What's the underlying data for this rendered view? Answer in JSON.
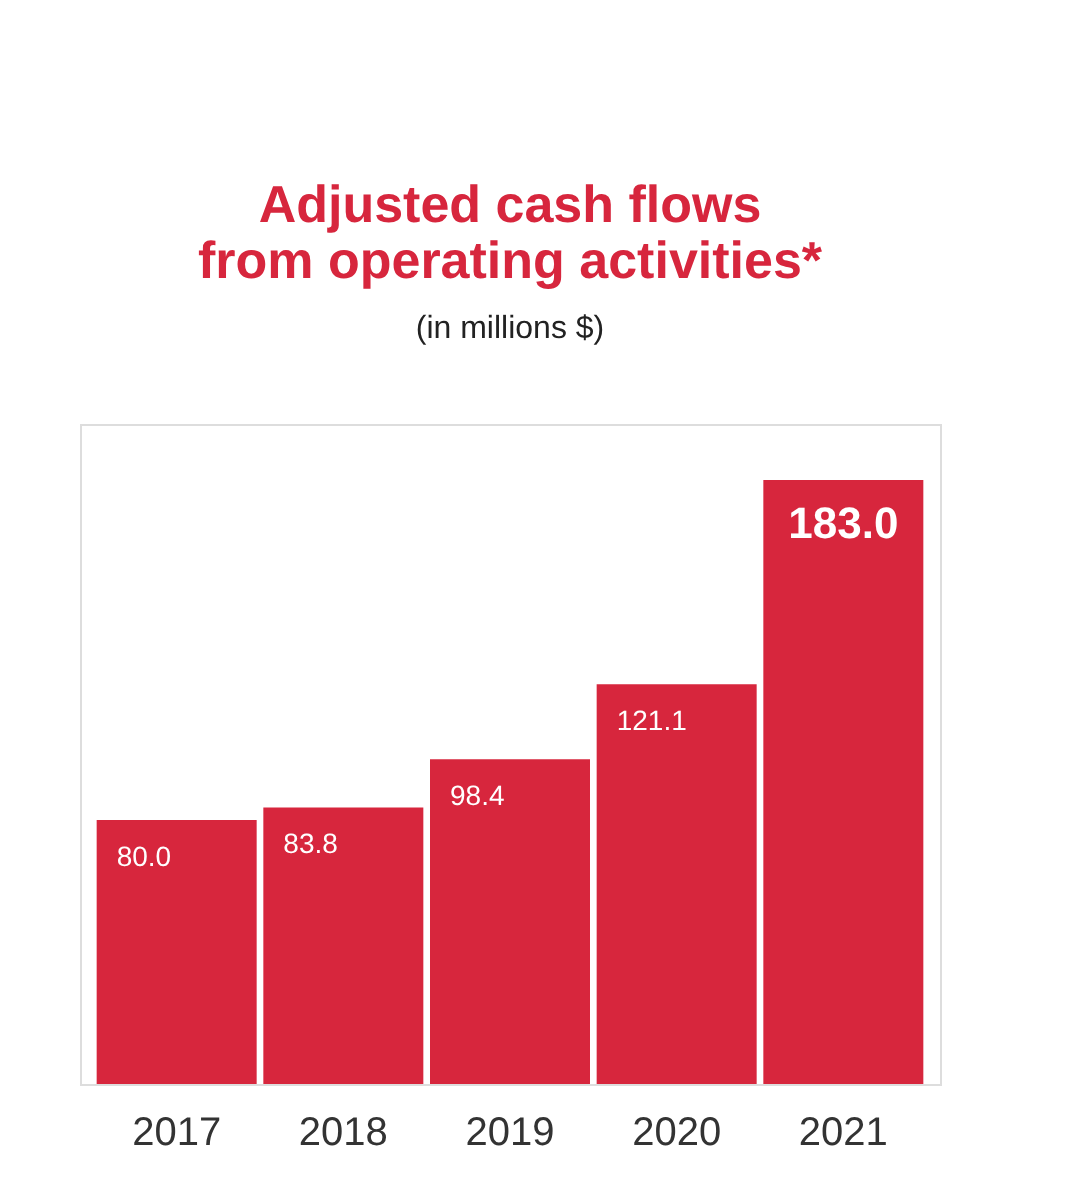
{
  "chart_data": {
    "type": "bar",
    "title": "Adjusted cash flows\nfrom operating activities*",
    "subtitle": "(in millions $)",
    "categories": [
      "2017",
      "2018",
      "2019",
      "2020",
      "2021"
    ],
    "values": [
      80.0,
      83.8,
      98.4,
      121.1,
      183.0
    ],
    "value_labels": [
      "80.0",
      "83.8",
      "98.4",
      "121.1",
      "183.0"
    ],
    "color": "#d7263d",
    "tick_labels": "x",
    "grid": false
  }
}
